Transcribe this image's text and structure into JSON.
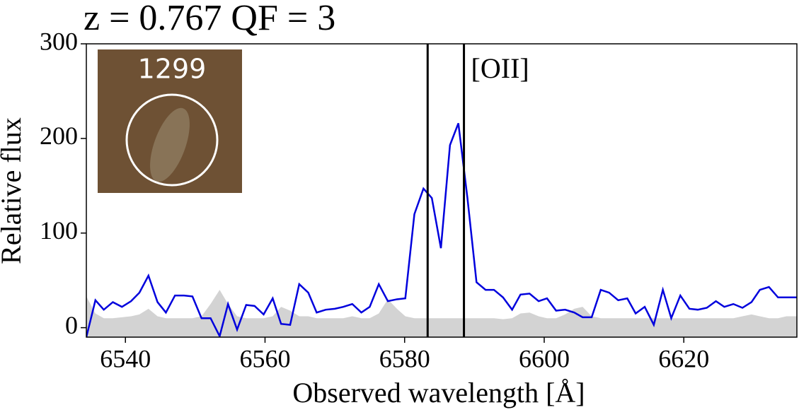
{
  "chart_data": {
    "type": "line",
    "title": "z = 0.767 QF = 3",
    "xlabel": "Observed wavelength [Å]",
    "ylabel": "Relative flux",
    "inset_label": "1299",
    "annotation": "[OII]",
    "vlines": [
      6583.3,
      6588.5
    ],
    "vline_color": "#000000",
    "x": [
      6534.4,
      6535.7,
      6536.9,
      6538.2,
      6539.5,
      6540.8,
      6542.0,
      6543.3,
      6544.6,
      6545.8,
      6547.1,
      6548.4,
      6549.6,
      6550.9,
      6552.2,
      6553.5,
      6554.7,
      6556.0,
      6557.3,
      6558.5,
      6559.8,
      6561.1,
      6562.3,
      6563.6,
      6564.9,
      6566.2,
      6567.4,
      6568.7,
      6570.0,
      6571.2,
      6572.5,
      6573.8,
      6575.0,
      6576.3,
      6577.6,
      6578.9,
      6580.1,
      6581.4,
      6582.7,
      6583.9,
      6585.2,
      6586.5,
      6587.7,
      6589.0,
      6590.3,
      6591.6,
      6592.8,
      6594.1,
      6595.4,
      6596.6,
      6597.9,
      6599.2,
      6600.4,
      6601.7,
      6603.0,
      6604.3,
      6605.5,
      6606.8,
      6608.1,
      6609.3,
      6610.6,
      6611.9,
      6613.1,
      6614.4,
      6615.7,
      6617.0,
      6618.2,
      6619.5,
      6620.8,
      6622.0,
      6623.3,
      6624.6,
      6625.8,
      6627.1,
      6628.4,
      6629.7,
      6630.9,
      6632.2,
      6633.5,
      6634.7
    ],
    "series": [
      {
        "color": "#0000dd",
        "values": [
          -10,
          29,
          19,
          27,
          22,
          28,
          37,
          55,
          27,
          16,
          34,
          34,
          33,
          10,
          10,
          -9,
          25,
          -2,
          24,
          23,
          14,
          31,
          4,
          3,
          46,
          37,
          16,
          19,
          20,
          22,
          25,
          16,
          22,
          46,
          28,
          30,
          31,
          120,
          147,
          137,
          84,
          193,
          216,
          137,
          48,
          40,
          40,
          32,
          19,
          35,
          36,
          28,
          31,
          18,
          19,
          16,
          11,
          11,
          40,
          37,
          29,
          31,
          15,
          22,
          3,
          40,
          10,
          34,
          20,
          19,
          21,
          28,
          22,
          25,
          21,
          27,
          40,
          43,
          32,
          32
        ]
      },
      {
        "color": "#d3d3d3",
        "fill": true,
        "values": [
          33,
          15,
          10,
          10,
          11,
          12,
          14,
          20,
          12,
          10,
          10,
          10,
          10,
          12,
          25,
          40,
          25,
          12,
          10,
          10,
          10,
          12,
          22,
          18,
          12,
          12,
          10,
          10,
          10,
          10,
          12,
          10,
          10,
          15,
          30,
          20,
          12,
          10,
          10,
          10,
          10,
          10,
          10,
          10,
          10,
          10,
          10,
          9,
          10,
          15,
          16,
          12,
          10,
          10,
          14,
          20,
          22,
          12,
          10,
          10,
          10,
          10,
          10,
          10,
          10,
          10,
          10,
          10,
          10,
          10,
          10,
          10,
          10,
          10,
          12,
          14,
          12,
          10,
          10,
          12
        ]
      }
    ],
    "xlim": [
      6534.4,
      6636.2
    ],
    "ylim": [
      -10,
      300
    ],
    "xticks": [
      6540,
      6560,
      6580,
      6600,
      6620
    ],
    "yticks": [
      0,
      100,
      200,
      300
    ]
  }
}
